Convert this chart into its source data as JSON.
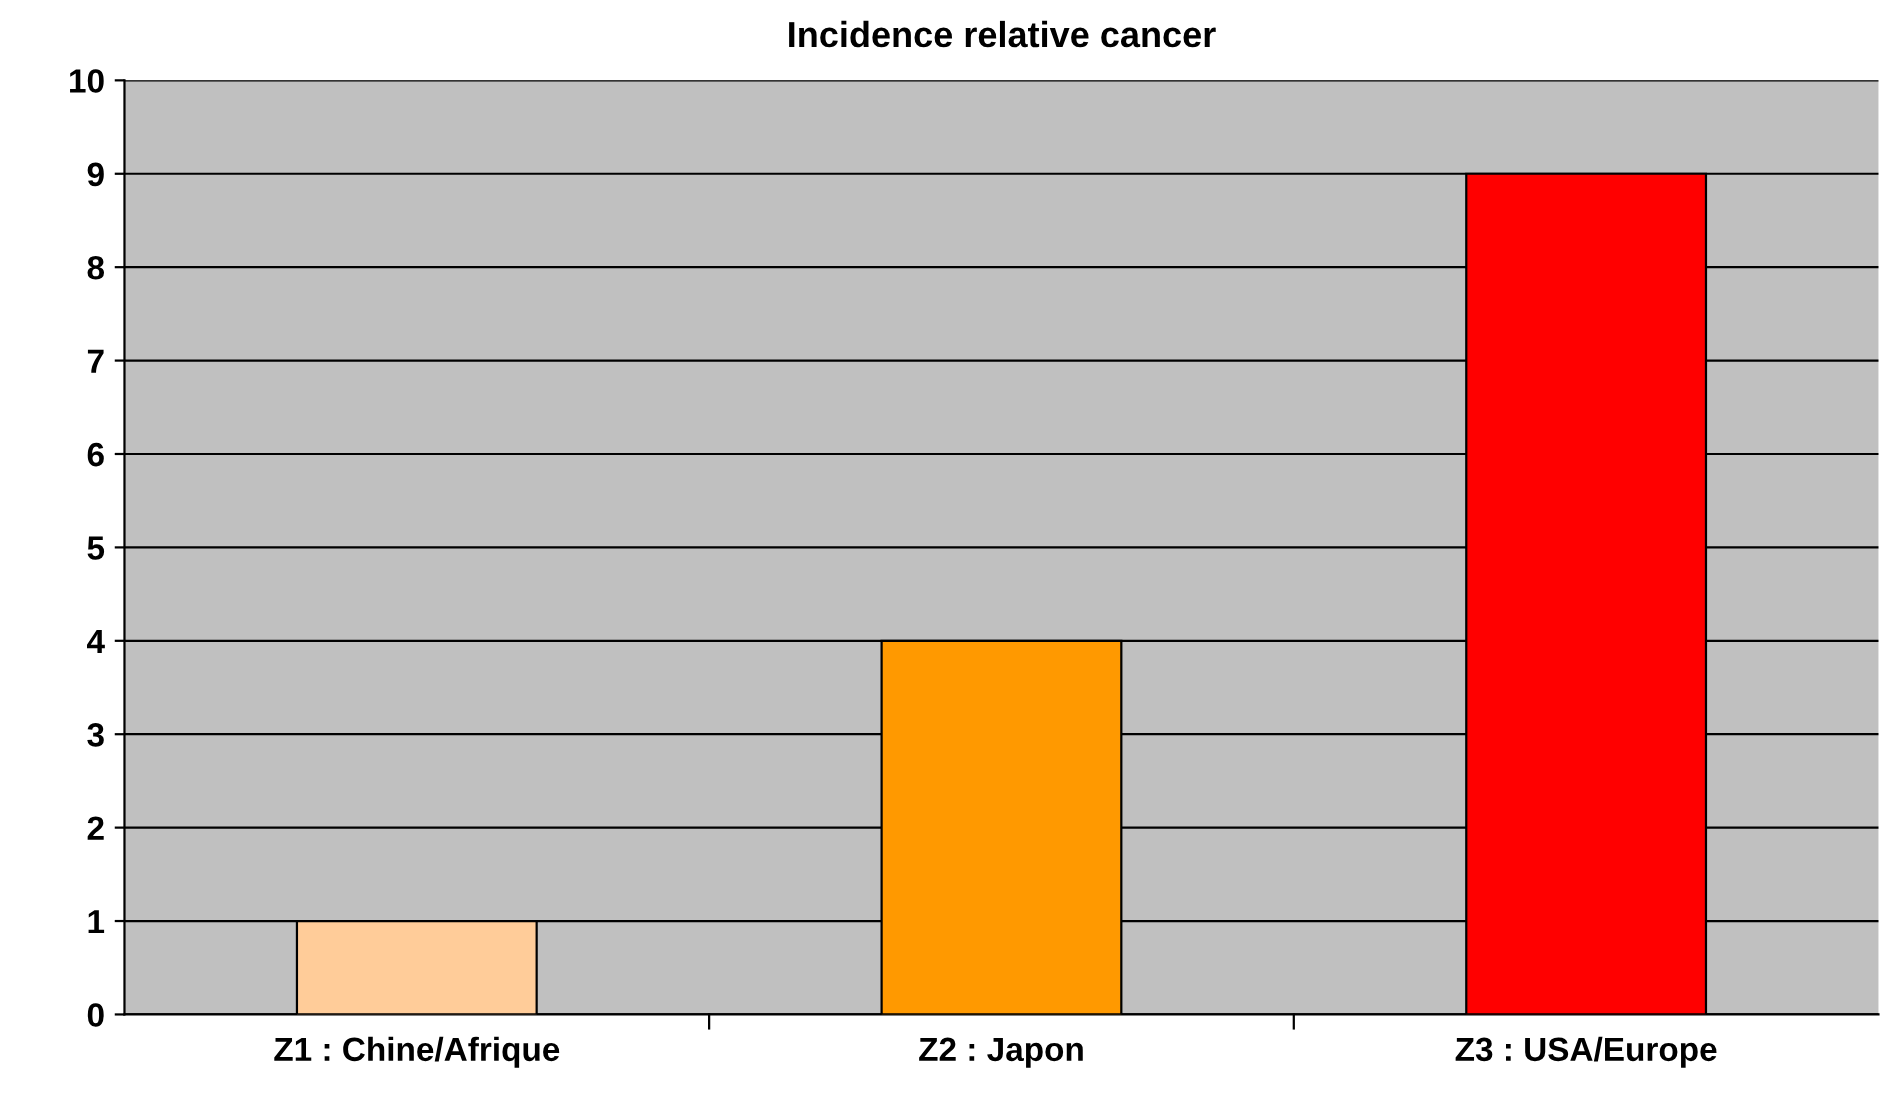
{
  "chart_data": {
    "type": "bar",
    "title": "Incidence relative cancer",
    "categories": [
      "Z1 : Chine/Afrique",
      "Z2 : Japon",
      "Z3 : USA/Europe"
    ],
    "values": [
      1,
      4,
      9
    ],
    "colors": [
      "#ffcc99",
      "#ff9900",
      "#ff0000"
    ],
    "ylim": [
      0,
      10
    ],
    "yticks": [
      0,
      1,
      2,
      3,
      4,
      5,
      6,
      7,
      8,
      9,
      10
    ],
    "grid": "y"
  }
}
